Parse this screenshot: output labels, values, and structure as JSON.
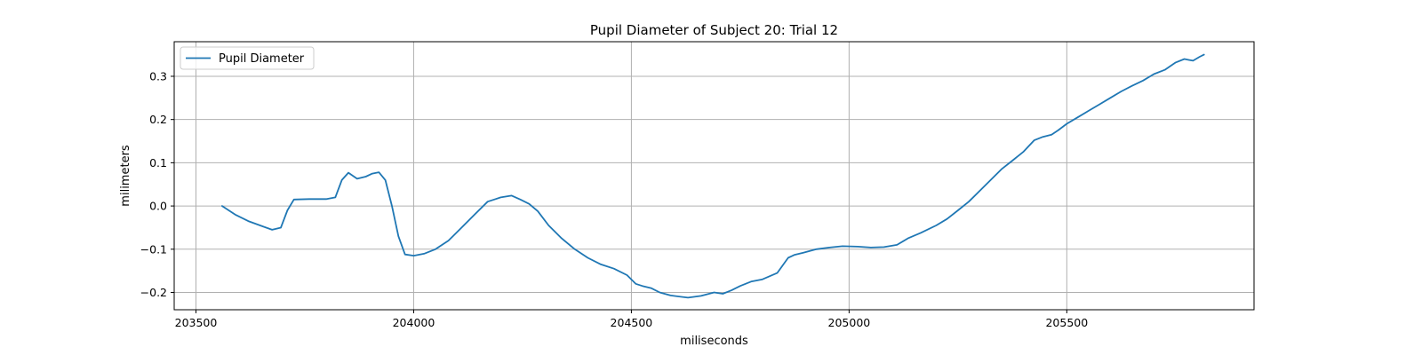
{
  "chart_data": {
    "type": "line",
    "title": "Pupil Diameter of Subject 20: Trial 12",
    "xlabel": "miliseconds",
    "ylabel": "milimeters",
    "xlim": [
      203450,
      205930
    ],
    "ylim": [
      -0.24,
      0.38
    ],
    "xticks": [
      203500,
      204000,
      204500,
      205000,
      205500
    ],
    "yticks": [
      -0.2,
      -0.1,
      0.0,
      0.1,
      0.2,
      0.3
    ],
    "xtick_labels": [
      "203500",
      "204000",
      "204500",
      "205000",
      "205500"
    ],
    "ytick_labels": [
      "−0.2",
      "−0.1",
      "0.0",
      "0.1",
      "0.2",
      "0.3"
    ],
    "grid": true,
    "legend": {
      "position": "top-left",
      "entries": [
        "Pupil Diameter"
      ]
    },
    "series": [
      {
        "name": "Pupil Diameter",
        "color": "#1f77b4",
        "x": [
          203560,
          203590,
          203620,
          203650,
          203675,
          203695,
          203710,
          203725,
          203760,
          203800,
          203820,
          203835,
          203850,
          203870,
          203890,
          203905,
          203920,
          203935,
          203950,
          203965,
          203980,
          204000,
          204025,
          204050,
          204080,
          204110,
          204140,
          204170,
          204185,
          204200,
          204225,
          204245,
          204265,
          204285,
          204310,
          204340,
          204370,
          204400,
          204430,
          204460,
          204490,
          204510,
          204525,
          204545,
          204565,
          204590,
          204630,
          204660,
          204690,
          204710,
          204730,
          204750,
          204775,
          204800,
          204835,
          204860,
          204875,
          204895,
          204925,
          204955,
          204985,
          205020,
          205050,
          205080,
          205110,
          205135,
          205165,
          205200,
          205225,
          205250,
          205275,
          205300,
          205325,
          205350,
          205375,
          205400,
          205425,
          205445,
          205465,
          205480,
          205500,
          205525,
          205550,
          205575,
          205600,
          205625,
          205650,
          205675,
          205700,
          205725,
          205750,
          205770,
          205780,
          205790,
          205805,
          205815
        ],
        "values": [
          0.0,
          -0.02,
          -0.035,
          -0.046,
          -0.055,
          -0.05,
          -0.01,
          0.015,
          0.016,
          0.016,
          0.02,
          0.06,
          0.077,
          0.063,
          0.068,
          0.075,
          0.078,
          0.06,
          0.0,
          -0.07,
          -0.112,
          -0.115,
          -0.11,
          -0.1,
          -0.08,
          -0.05,
          -0.02,
          0.01,
          0.015,
          0.02,
          0.024,
          0.015,
          0.005,
          -0.012,
          -0.045,
          -0.075,
          -0.1,
          -0.12,
          -0.135,
          -0.145,
          -0.16,
          -0.18,
          -0.185,
          -0.19,
          -0.2,
          -0.207,
          -0.212,
          -0.208,
          -0.2,
          -0.203,
          -0.195,
          -0.185,
          -0.175,
          -0.17,
          -0.155,
          -0.12,
          -0.113,
          -0.108,
          -0.1,
          -0.096,
          -0.093,
          -0.094,
          -0.096,
          -0.095,
          -0.09,
          -0.075,
          -0.062,
          -0.045,
          -0.03,
          -0.01,
          0.01,
          0.035,
          0.06,
          0.085,
          0.105,
          0.125,
          0.152,
          0.16,
          0.165,
          0.175,
          0.19,
          0.205,
          0.22,
          0.235,
          0.25,
          0.265,
          0.278,
          0.29,
          0.305,
          0.315,
          0.332,
          0.34,
          0.338,
          0.336,
          0.345,
          0.35
        ]
      }
    ]
  }
}
